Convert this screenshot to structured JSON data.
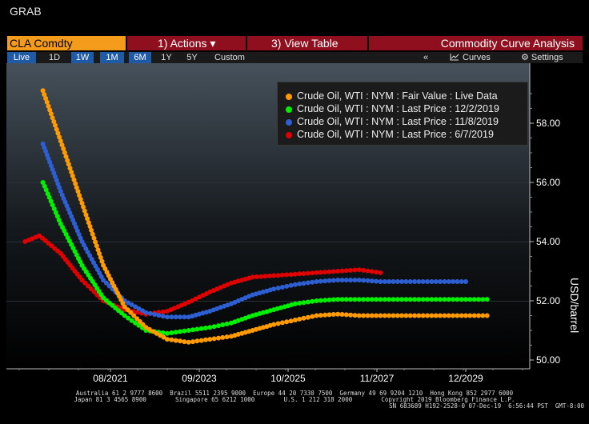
{
  "app": {
    "title": "GRAB"
  },
  "command_bar": {
    "ticker": "CLA Comdty",
    "actions_label": "1) Actions ▾",
    "view_table_label": "3) View Table",
    "function_title": "Commodity Curve Analysis"
  },
  "range_bar": {
    "items": [
      "Live",
      "1D",
      "1W",
      "1M",
      "6M",
      "1Y",
      "5Y",
      "Custom"
    ],
    "active": "Live",
    "collapse_icon": "«",
    "curves_label": "Curves",
    "settings_label": "Settings"
  },
  "colors": {
    "orange": "#ff9b00",
    "green": "#00f000",
    "blue": "#2d5fd2",
    "red": "#e00000",
    "brand": "#f49b1c",
    "menu": "#8f0f1f"
  },
  "chart_data": {
    "type": "line",
    "ylabel": "USD/barrel",
    "ylim": [
      50,
      59.5
    ],
    "yticks": [
      "50.00",
      "52.00",
      "54.00",
      "56.00",
      "58.00"
    ],
    "xticks": [
      "08/2021",
      "09/2023",
      "10/2025",
      "11/2027",
      "12/2029"
    ],
    "grid": false,
    "legend_position": "top-right",
    "series": [
      {
        "name": "Crude Oil, WTI : NYM : Fair Value : Live Data",
        "color": "#ff9b00",
        "x": [
          "2020-01",
          "2020-06",
          "2020-12",
          "2021-06",
          "2021-12",
          "2022-06",
          "2022-12",
          "2023-06",
          "2023-12",
          "2024-06",
          "2024-12",
          "2025-06",
          "2025-12",
          "2026-06",
          "2026-12",
          "2027-06",
          "2027-12",
          "2028-06",
          "2028-12",
          "2029-06",
          "2029-12",
          "2030-06"
        ],
        "y": [
          59.1,
          57.4,
          55.3,
          53.2,
          51.8,
          51.1,
          50.7,
          50.6,
          50.7,
          50.8,
          51.0,
          51.2,
          51.35,
          51.5,
          51.55,
          51.5,
          51.5,
          51.5,
          51.5,
          51.5,
          51.5,
          51.5
        ]
      },
      {
        "name": "Crude Oil, WTI : NYM : Last Price : 12/2/2019",
        "color": "#00f000",
        "x": [
          "2020-01",
          "2020-06",
          "2020-12",
          "2021-06",
          "2021-12",
          "2022-06",
          "2022-12",
          "2023-06",
          "2023-12",
          "2024-06",
          "2024-12",
          "2025-06",
          "2025-12",
          "2026-06",
          "2026-12",
          "2027-06",
          "2027-12",
          "2028-06",
          "2028-12",
          "2029-06",
          "2029-12",
          "2030-06"
        ],
        "y": [
          56.0,
          54.6,
          53.2,
          52.1,
          51.5,
          51.0,
          50.9,
          51.0,
          51.1,
          51.25,
          51.5,
          51.7,
          51.9,
          52.0,
          52.05,
          52.05,
          52.05,
          52.05,
          52.05,
          52.05,
          52.05,
          52.05
        ]
      },
      {
        "name": "Crude Oil, WTI : NYM : Last Price : 11/8/2019",
        "color": "#2d5fd2",
        "x": [
          "2020-01",
          "2020-06",
          "2020-12",
          "2021-06",
          "2021-12",
          "2022-06",
          "2022-12",
          "2023-06",
          "2023-12",
          "2024-06",
          "2024-12",
          "2025-06",
          "2025-12",
          "2026-06",
          "2026-12",
          "2027-06",
          "2027-12",
          "2028-06",
          "2028-12",
          "2029-06",
          "2029-12"
        ],
        "y": [
          57.3,
          55.7,
          54.0,
          52.7,
          52.0,
          51.6,
          51.45,
          51.45,
          51.65,
          51.9,
          52.2,
          52.4,
          52.55,
          52.65,
          52.7,
          52.7,
          52.65,
          52.65,
          52.65,
          52.65,
          52.65
        ]
      },
      {
        "name": "Crude Oil, WTI : NYM : Last Price : 6/7/2019",
        "color": "#e00000",
        "x": [
          "2019-08",
          "2019-12",
          "2020-06",
          "2020-12",
          "2021-06",
          "2021-12",
          "2022-06",
          "2022-12",
          "2023-06",
          "2023-12",
          "2024-06",
          "2024-12",
          "2025-06",
          "2025-12",
          "2026-06",
          "2026-12",
          "2027-06",
          "2027-12"
        ],
        "y": [
          54.0,
          54.2,
          53.6,
          52.7,
          52.0,
          51.7,
          51.55,
          51.65,
          51.95,
          52.3,
          52.6,
          52.8,
          52.85,
          52.9,
          52.95,
          53.0,
          53.05,
          52.95
        ]
      }
    ]
  },
  "footer": {
    "line1": "Australia 61 2 9777 8600  Brazil 5511 2395 9000  Europe 44 20 7330 7500  Germany 49 69 9204 1210  Hong Kong 852 2977 6000",
    "line2": "Japan 81 3 4565 8900        Singapore 65 6212 1000        U.S. 1 212 318 2000        Copyright 2019 Bloomberg Finance L.P.",
    "line3": "SN 683689 H192-2528-0 07-Dec-19  6:56:44 PST  GMT-8:00"
  }
}
